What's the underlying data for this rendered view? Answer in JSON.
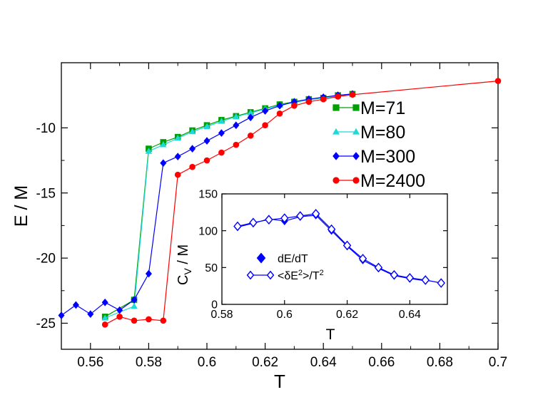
{
  "chart_data": [
    {
      "type": "line",
      "role": "main",
      "title": "",
      "xlabel": "T",
      "ylabel": "E / M",
      "xlim": [
        0.55,
        0.7
      ],
      "ylim": [
        -27,
        -5
      ],
      "xticks": [
        0.56,
        0.58,
        0.6,
        0.62,
        0.64,
        0.66,
        0.68,
        0.7
      ],
      "xtick_labels": [
        "0.56",
        "0.58",
        "0.6",
        "0.62",
        "0.64",
        "0.66",
        "0.68",
        "0.7"
      ],
      "yticks": [
        -25,
        -20,
        -15,
        -10
      ],
      "ytick_labels": [
        "-25",
        "-20",
        "-15",
        "-10"
      ],
      "legend_position": "top-right",
      "series": [
        {
          "name": "M=71",
          "color": "#00a000",
          "marker": "square",
          "x": [
            0.565,
            0.575,
            0.58,
            0.585,
            0.59,
            0.595,
            0.6,
            0.605,
            0.61,
            0.615,
            0.62,
            0.625,
            0.63,
            0.635,
            0.64,
            0.645,
            0.65
          ],
          "y": [
            -24.5,
            -23.2,
            -11.6,
            -11.1,
            -10.7,
            -10.2,
            -9.8,
            -9.4,
            -9.1,
            -8.8,
            -8.5,
            -8.2,
            -8.0,
            -7.8,
            -7.7,
            -7.5,
            -7.4
          ]
        },
        {
          "name": "M=80",
          "color": "#20d8d8",
          "marker": "triangle",
          "x": [
            0.565,
            0.575,
            0.58,
            0.585,
            0.59,
            0.595,
            0.6,
            0.605,
            0.61,
            0.615,
            0.62,
            0.625,
            0.63,
            0.635,
            0.64,
            0.645,
            0.65
          ],
          "y": [
            -24.6,
            -23.7,
            -11.8,
            -11.3,
            -10.8,
            -10.3,
            -9.9,
            -9.5,
            -9.15,
            -8.85,
            -8.55,
            -8.25,
            -8.05,
            -7.85,
            -7.7,
            -7.55,
            -7.45
          ]
        },
        {
          "name": "M=300",
          "color": "#0000ff",
          "marker": "diamond",
          "x": [
            0.55,
            0.555,
            0.56,
            0.565,
            0.57,
            0.575,
            0.58,
            0.585,
            0.59,
            0.595,
            0.6,
            0.605,
            0.61,
            0.615,
            0.62,
            0.625,
            0.63,
            0.635,
            0.64,
            0.645,
            0.65
          ],
          "y": [
            -24.4,
            -23.6,
            -24.3,
            -23.4,
            -24.0,
            -23.2,
            -21.2,
            -12.7,
            -12.2,
            -11.6,
            -11.0,
            -10.4,
            -9.8,
            -9.2,
            -8.7,
            -8.3,
            -8.0,
            -7.8,
            -7.65,
            -7.5,
            -7.4
          ]
        },
        {
          "name": "M=2400",
          "color": "#ff0000",
          "marker": "circle",
          "x": [
            0.565,
            0.57,
            0.575,
            0.58,
            0.585,
            0.59,
            0.595,
            0.6,
            0.605,
            0.61,
            0.615,
            0.62,
            0.625,
            0.63,
            0.635,
            0.64,
            0.645,
            0.65,
            0.7
          ],
          "y": [
            -25.1,
            -24.5,
            -24.8,
            -24.7,
            -24.8,
            -13.6,
            -13.0,
            -12.5,
            -11.9,
            -11.3,
            -10.6,
            -9.8,
            -8.9,
            -8.3,
            -8.0,
            -7.8,
            -7.6,
            -7.45,
            -6.4
          ]
        }
      ]
    },
    {
      "type": "line",
      "role": "inset",
      "title": "",
      "xlabel": "T",
      "ylabel": "C",
      "ylabel_subscript": "V",
      "ylabel_suffix": " / M",
      "xlim": [
        0.58,
        0.652
      ],
      "ylim": [
        0,
        150
      ],
      "xticks": [
        0.58,
        0.6,
        0.62,
        0.64
      ],
      "xtick_labels": [
        "0.58",
        "0.6",
        "0.62",
        "0.64"
      ],
      "yticks": [
        0,
        50,
        100,
        150
      ],
      "ytick_labels": [
        "0",
        "50",
        "100",
        "150"
      ],
      "legend_position": "bottom-left",
      "series": [
        {
          "name": "dE/dT",
          "color": "#0000ff",
          "marker": "diamond-filled",
          "x": [
            0.585,
            0.59,
            0.595,
            0.6,
            0.605,
            0.61,
            0.615,
            0.62,
            0.625,
            0.63,
            0.635,
            0.64,
            0.645
          ],
          "y": [
            105,
            110,
            116,
            113,
            119,
            121,
            100,
            79,
            60,
            49,
            39,
            35,
            32
          ]
        },
        {
          "name": "<δE2>/T2",
          "label_parts": [
            "<δE",
            "2",
            ">/T",
            "2"
          ],
          "color": "#0000ff",
          "marker": "diamond-open",
          "x": [
            0.585,
            0.59,
            0.595,
            0.6,
            0.605,
            0.61,
            0.615,
            0.62,
            0.625,
            0.63,
            0.635,
            0.64,
            0.645,
            0.65
          ],
          "y": [
            106,
            111,
            115,
            117,
            120,
            123,
            102,
            80,
            62,
            50,
            40,
            36,
            33,
            29
          ]
        }
      ]
    }
  ]
}
